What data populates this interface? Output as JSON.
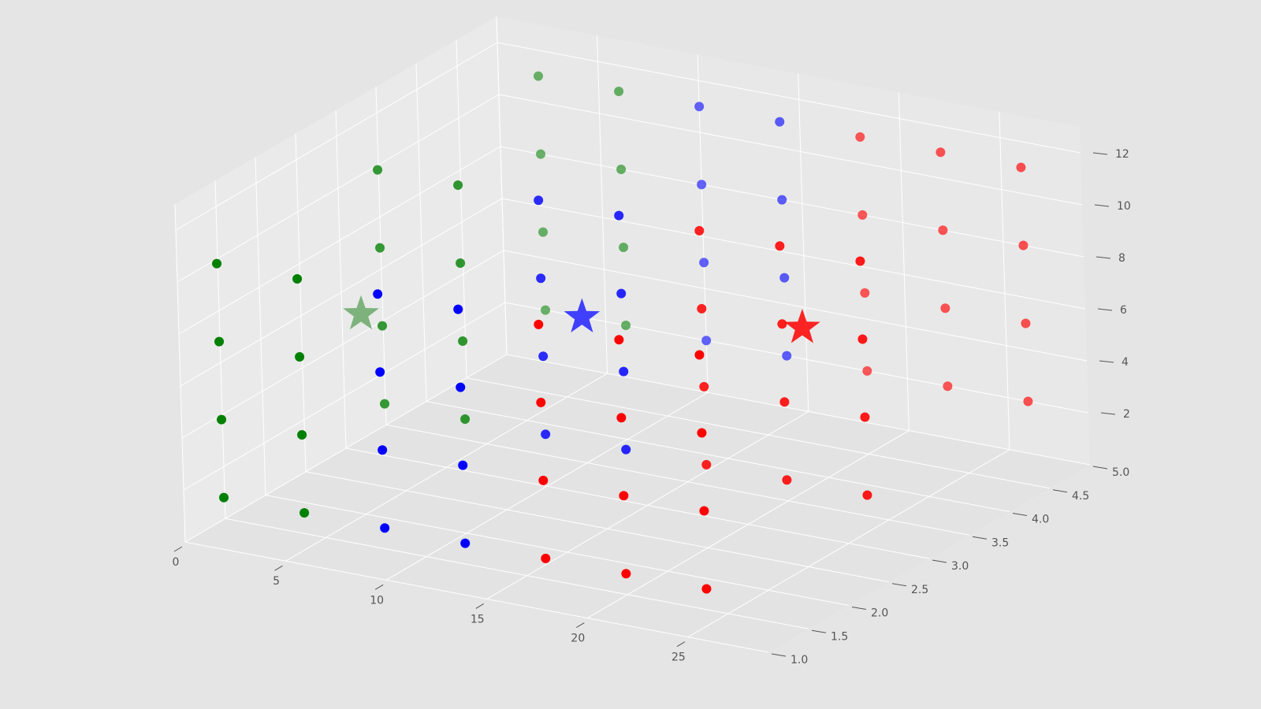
{
  "chart_data": {
    "type": "scatter3d",
    "xlim": [
      0,
      29
    ],
    "ylim": [
      1,
      5
    ],
    "zlim": [
      0,
      13
    ],
    "xticks": [
      0,
      5,
      10,
      15,
      20,
      25
    ],
    "yticks": [
      {
        "value": 1,
        "label": "1.0"
      },
      {
        "value": 1.5,
        "label": "1.5"
      },
      {
        "value": 2,
        "label": "2.0"
      },
      {
        "value": 2.5,
        "label": "2.5"
      },
      {
        "value": 3,
        "label": "3.0"
      },
      {
        "value": 3.5,
        "label": "3.5"
      },
      {
        "value": 4,
        "label": "4.0"
      },
      {
        "value": 4.5,
        "label": "4.5"
      },
      {
        "value": 5,
        "label": "5.0"
      }
    ],
    "zticks": [
      2,
      4,
      6,
      8,
      10,
      12
    ],
    "grid": true,
    "series": [
      {
        "color": "#008000",
        "marker": "circle",
        "x": [
          2,
          2,
          2,
          2,
          2,
          2,
          2,
          2,
          2,
          2,
          2,
          2,
          6,
          6,
          6,
          6,
          6,
          6,
          6,
          6,
          6,
          6,
          6,
          6
        ],
        "y": [
          1,
          1,
          1,
          1,
          3,
          3,
          3,
          3,
          5,
          5,
          5,
          5,
          1,
          1,
          1,
          1,
          3,
          3,
          3,
          3,
          5,
          5,
          5,
          5
        ],
        "z": [
          2,
          5,
          8,
          11,
          2,
          5,
          8,
          11,
          2,
          5,
          8,
          11,
          2,
          5,
          8,
          11,
          2,
          5,
          8,
          11,
          2,
          5,
          8,
          11
        ]
      },
      {
        "color": "#0000ff",
        "marker": "circle",
        "x": [
          10,
          10,
          10,
          10,
          10,
          10,
          10,
          10,
          10,
          10,
          10,
          10,
          14,
          14,
          14,
          14,
          14,
          14,
          14,
          14,
          14,
          14,
          14,
          14
        ],
        "y": [
          1,
          1,
          1,
          1,
          3,
          3,
          3,
          3,
          5,
          5,
          5,
          5,
          1,
          1,
          1,
          1,
          3,
          3,
          3,
          3,
          5,
          5,
          5,
          5
        ],
        "z": [
          2,
          5,
          8,
          11,
          2,
          5,
          8,
          11,
          2,
          5,
          8,
          11,
          2,
          5,
          8,
          11,
          2,
          5,
          8,
          11,
          2,
          5,
          8,
          11
        ]
      },
      {
        "color": "#ff0000",
        "marker": "circle",
        "x": [
          18,
          18,
          18,
          18,
          18,
          18,
          18,
          18,
          18,
          18,
          18,
          18,
          22,
          22,
          22,
          22,
          22,
          22,
          22,
          22,
          22,
          22,
          22,
          22,
          26,
          26,
          26,
          26,
          26,
          26,
          26,
          26,
          26,
          26,
          26,
          26
        ],
        "y": [
          1,
          1,
          1,
          1,
          3,
          3,
          3,
          3,
          5,
          5,
          5,
          5,
          1,
          1,
          1,
          1,
          3,
          3,
          3,
          3,
          5,
          5,
          5,
          5,
          1,
          1,
          1,
          1,
          3,
          3,
          3,
          3,
          5,
          5,
          5,
          5
        ],
        "z": [
          2,
          5,
          8,
          11,
          2,
          5,
          8,
          11,
          2,
          5,
          8,
          11,
          2,
          5,
          8,
          11,
          2,
          5,
          8,
          11,
          2,
          5,
          8,
          11,
          2,
          5,
          8,
          11,
          2,
          5,
          8,
          11,
          2,
          5,
          8,
          11
        ]
      },
      {
        "color": [
          "#6aa86a",
          "#2222ff",
          "#ff0000"
        ],
        "marker": "star",
        "x": [
          3,
          12,
          23
        ],
        "y": [
          2.5,
          3,
          3
        ],
        "z": [
          6.5,
          6.8,
          8
        ]
      }
    ]
  }
}
